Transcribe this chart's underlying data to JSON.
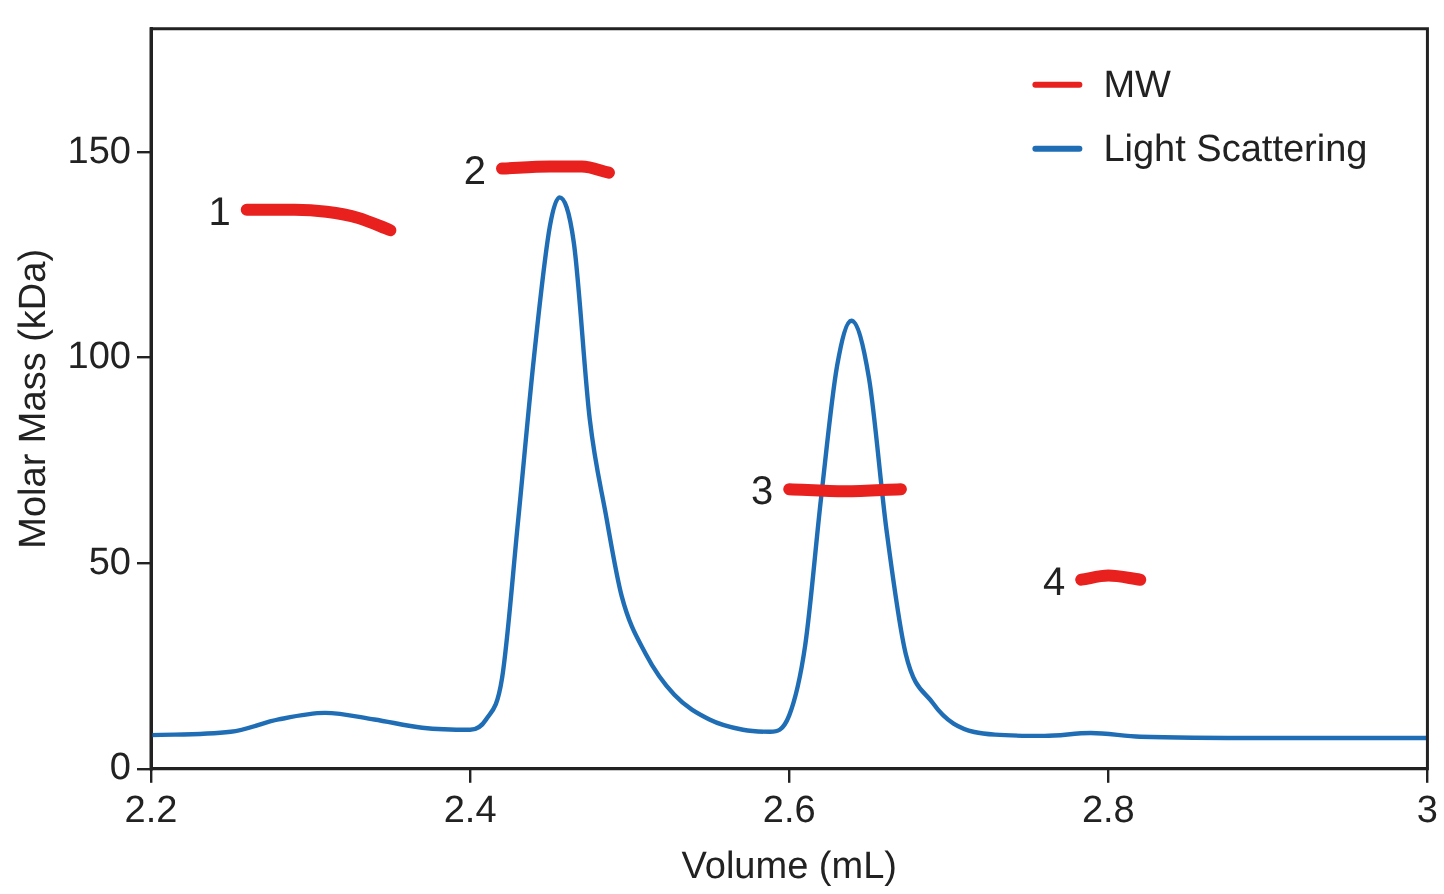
{
  "chart_data": {
    "type": "line",
    "xlabel": "Volume (mL)",
    "ylabel": "Molar Mass (kDa)",
    "xlim": [
      2.2,
      3
    ],
    "xticks": [
      2.2,
      2.4,
      2.6,
      2.8,
      3
    ],
    "ylim": [
      0,
      180
    ],
    "yticks": [
      0,
      50,
      100,
      150
    ],
    "grid": false,
    "legend": "top right",
    "marker": "none",
    "series": [
      {
        "name": "MW",
        "color": "#e8201e",
        "x": [
          2.26,
          2.29,
          2.31,
          2.33,
          2.35,
          2.385,
          2.42,
          2.45,
          2.47,
          2.487,
          2.54,
          2.6,
          2.635,
          2.67,
          2.73,
          2.783,
          2.8,
          2.82
        ],
        "values": [
          136,
          136,
          135.5,
          134,
          131,
          null,
          146,
          146.5,
          146.5,
          145,
          null,
          68,
          67.5,
          68,
          null,
          46,
          47,
          46
        ]
      },
      {
        "name": "Light Scattering",
        "color": "#1f6db5",
        "x": [
          2.2,
          2.25,
          2.28,
          2.309,
          2.34,
          2.37,
          2.4,
          2.41,
          2.42,
          2.43,
          2.44,
          2.45,
          2.456,
          2.465,
          2.475,
          2.485,
          2.495,
          2.51,
          2.528,
          2.55,
          2.571,
          2.588,
          2.6,
          2.61,
          2.62,
          2.63,
          2.639,
          2.65,
          2.661,
          2.673,
          2.69,
          2.703,
          2.729,
          2.76,
          2.789,
          2.82,
          2.9,
          3
        ],
        "values": [
          8.2,
          9,
          12,
          13.6,
          12,
          10,
          9.5,
          12,
          22,
          60,
          100,
          132,
          139,
          128,
          85,
          62,
          42,
          28,
          18,
          12,
          9.5,
          9,
          13,
          30,
          66,
          98,
          109,
          95,
          58,
          28,
          16,
          11,
          8.3,
          8,
          8.7,
          7.8,
          7.5,
          7.5
        ]
      }
    ],
    "annotations": [
      {
        "text": "1",
        "x": 2.26,
        "y": 136
      },
      {
        "text": "2",
        "x": 2.42,
        "y": 146
      },
      {
        "text": "3",
        "x": 2.6,
        "y": 68
      },
      {
        "text": "4",
        "x": 2.783,
        "y": 46
      }
    ]
  }
}
